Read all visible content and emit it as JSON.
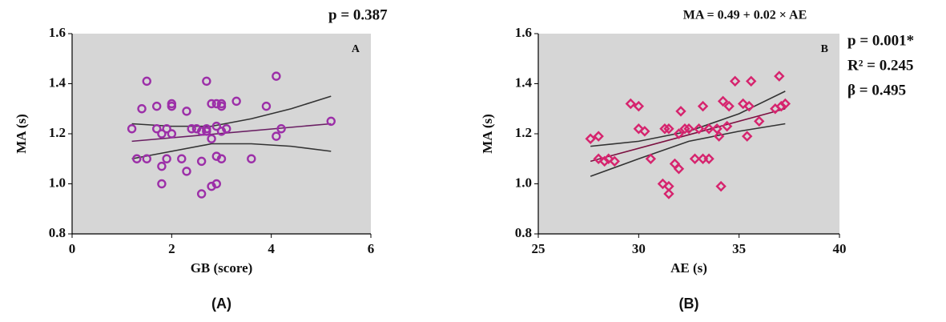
{
  "chart_data": [
    {
      "type": "scatter",
      "caption": "(A)",
      "panel_label": "A",
      "annotations": [
        "p = 0.387"
      ],
      "x_label": "GB (score)",
      "y_label": "MA (s)",
      "xlim": [
        0,
        6
      ],
      "xticks": [
        0,
        2,
        4,
        6
      ],
      "ylim": [
        0.8,
        1.6
      ],
      "yticks": [
        0.8,
        {
          "value": 1,
          "label": "1.0"
        },
        1.2,
        1.4,
        1.6
      ],
      "marker": "circle",
      "color": "#9c2fa8",
      "x": [
        1.2,
        1.3,
        1.4,
        1.5,
        1.5,
        1.7,
        1.7,
        1.8,
        1.8,
        1.8,
        1.9,
        1.9,
        2.0,
        2.0,
        2.0,
        2.2,
        2.3,
        2.3,
        2.4,
        2.5,
        2.6,
        2.6,
        2.6,
        2.7,
        2.7,
        2.7,
        2.8,
        2.8,
        2.8,
        2.9,
        2.9,
        2.9,
        2.9,
        3.0,
        3.0,
        3.0,
        3.0,
        3.1,
        3.3,
        3.6,
        3.9,
        4.1,
        4.1,
        4.2,
        5.2
      ],
      "values": [
        1.22,
        1.1,
        1.3,
        1.41,
        1.1,
        1.31,
        1.22,
        1.2,
        1.07,
        1.0,
        1.22,
        1.1,
        1.32,
        1.31,
        1.2,
        1.1,
        1.29,
        1.05,
        1.22,
        1.22,
        1.21,
        1.09,
        0.96,
        1.41,
        1.21,
        1.22,
        1.32,
        1.18,
        0.99,
        1.32,
        1.23,
        1.11,
        1.0,
        1.31,
        1.21,
        1.1,
        1.32,
        1.22,
        1.33,
        1.1,
        1.31,
        1.43,
        1.19,
        1.22,
        1.25
      ],
      "lines": [
        {
          "color": "#6a1f63",
          "x": [
            1.2,
            5.2
          ],
          "values": [
            1.17,
            1.24
          ]
        },
        {
          "color": "#333333",
          "x": [
            1.2,
            2.0,
            2.8,
            3.6,
            4.4,
            5.2
          ],
          "values": [
            1.24,
            1.23,
            1.23,
            1.26,
            1.3,
            1.35
          ]
        },
        {
          "color": "#333333",
          "x": [
            1.2,
            2.0,
            2.8,
            3.6,
            4.4,
            5.2
          ],
          "values": [
            1.1,
            1.13,
            1.16,
            1.16,
            1.15,
            1.13
          ]
        }
      ]
    },
    {
      "type": "scatter",
      "caption": "(B)",
      "panel_label": "B",
      "annotations": [
        "MA = 0.49 + 0.02 × AE",
        "p = 0.001*",
        "R² = 0.245",
        "β = 0.495"
      ],
      "x_label": "AE (s)",
      "y_label": "MA (s)",
      "xlim": [
        25,
        40
      ],
      "xticks": [
        25,
        30,
        35,
        40
      ],
      "ylim": [
        0.8,
        1.6
      ],
      "yticks": [
        0.8,
        {
          "value": 1,
          "label": "1.0"
        },
        1.2,
        1.4,
        1.6
      ],
      "marker": "diamond",
      "color": "#d6246e",
      "x": [
        27.6,
        28.0,
        28.0,
        28.3,
        28.5,
        28.8,
        29.6,
        30.0,
        30.0,
        30.3,
        30.6,
        31.2,
        31.3,
        31.5,
        31.5,
        31.5,
        31.8,
        32.0,
        32.0,
        32.1,
        32.3,
        32.5,
        32.8,
        33.0,
        33.2,
        33.2,
        33.5,
        33.5,
        33.9,
        34.0,
        34.1,
        34.2,
        34.4,
        34.5,
        34.8,
        35.2,
        35.4,
        35.5,
        35.6,
        36.0,
        36.8,
        37.0,
        37.3,
        37.1
      ],
      "values": [
        1.18,
        1.19,
        1.1,
        1.09,
        1.1,
        1.09,
        1.32,
        1.31,
        1.22,
        1.21,
        1.1,
        1.0,
        1.22,
        1.22,
        0.99,
        0.96,
        1.08,
        1.2,
        1.06,
        1.29,
        1.22,
        1.22,
        1.1,
        1.22,
        1.31,
        1.1,
        1.22,
        1.1,
        1.22,
        1.19,
        0.99,
        1.33,
        1.23,
        1.31,
        1.41,
        1.32,
        1.19,
        1.31,
        1.41,
        1.25,
        1.3,
        1.43,
        1.32,
        1.31
      ],
      "lines": [
        {
          "color": "#7b1040",
          "x": [
            27.6,
            37.3
          ],
          "values": [
            1.09,
            1.3
          ]
        },
        {
          "color": "#333333",
          "x": [
            27.6,
            30,
            32.5,
            35,
            37.3
          ],
          "values": [
            1.15,
            1.17,
            1.21,
            1.28,
            1.37
          ]
        },
        {
          "color": "#333333",
          "x": [
            27.6,
            30,
            32.5,
            35,
            37.3
          ],
          "values": [
            1.03,
            1.1,
            1.17,
            1.21,
            1.24
          ]
        }
      ]
    }
  ]
}
